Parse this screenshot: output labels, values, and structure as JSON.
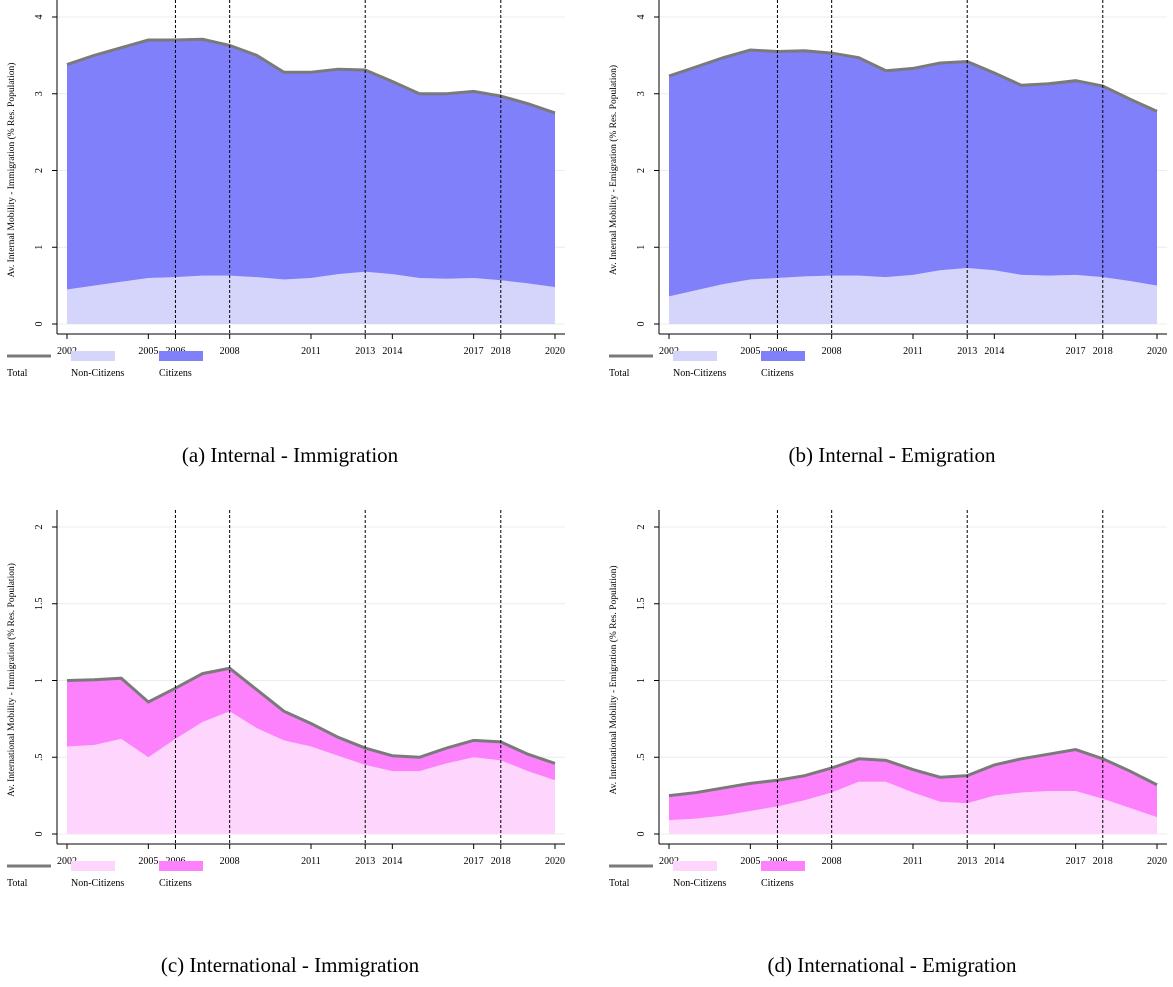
{
  "chart_data": [
    {
      "type": "stacked-area",
      "caption": "(a) Internal - Immigration",
      "y_label": "Av. Internal Mobility - Immigration (% Res. Population)",
      "x": [
        2002,
        2003,
        2004,
        2005,
        2006,
        2007,
        2008,
        2009,
        2010,
        2011,
        2012,
        2013,
        2014,
        2015,
        2016,
        2017,
        2018,
        2019,
        2020
      ],
      "series": [
        {
          "name": "Total",
          "color": "#7a7a7a",
          "style": "line",
          "values": [
            3.38,
            3.5,
            3.6,
            3.7,
            3.7,
            3.71,
            3.63,
            3.5,
            3.28,
            3.28,
            3.32,
            3.31,
            3.16,
            3.0,
            3.0,
            3.03,
            2.97,
            2.87,
            2.75
          ]
        },
        {
          "name": "Non-Citizens",
          "color": "#d5d5fb",
          "style": "area",
          "values": [
            0.45,
            0.5,
            0.55,
            0.6,
            0.61,
            0.63,
            0.63,
            0.61,
            0.58,
            0.6,
            0.65,
            0.68,
            0.65,
            0.6,
            0.59,
            0.6,
            0.57,
            0.53,
            0.48
          ]
        },
        {
          "name": "Citizens",
          "color": "#8080fa",
          "style": "area",
          "values": [
            2.93,
            3.0,
            3.05,
            3.1,
            3.09,
            3.08,
            3.0,
            2.89,
            2.7,
            2.68,
            2.67,
            2.63,
            2.51,
            2.4,
            2.41,
            2.43,
            2.4,
            2.34,
            2.27
          ]
        }
      ],
      "xlim": [
        2002,
        2020
      ],
      "xticks": [
        2002,
        2005,
        2006,
        2008,
        2011,
        2013,
        2014,
        2017,
        2018,
        2020
      ],
      "ylim": [
        0,
        4
      ],
      "yticks": [
        0,
        1,
        2,
        3,
        4
      ],
      "vlines": [
        2006,
        2008,
        2013,
        2018
      ],
      "grid": true
    },
    {
      "type": "stacked-area",
      "caption": "(b) Internal - Emigration",
      "y_label": "Av. Internal Mobility - Emigration (% Res. Population)",
      "x": [
        2002,
        2003,
        2004,
        2005,
        2006,
        2007,
        2008,
        2009,
        2010,
        2011,
        2012,
        2013,
        2014,
        2015,
        2016,
        2017,
        2018,
        2019,
        2020
      ],
      "series": [
        {
          "name": "Total",
          "color": "#7a7a7a",
          "style": "line",
          "values": [
            3.23,
            3.35,
            3.47,
            3.57,
            3.55,
            3.56,
            3.53,
            3.47,
            3.3,
            3.33,
            3.4,
            3.42,
            3.27,
            3.11,
            3.13,
            3.17,
            3.1,
            2.93,
            2.77
          ]
        },
        {
          "name": "Non-Citizens",
          "color": "#d5d5fb",
          "style": "area",
          "values": [
            0.36,
            0.44,
            0.52,
            0.58,
            0.6,
            0.62,
            0.63,
            0.63,
            0.61,
            0.64,
            0.7,
            0.73,
            0.7,
            0.64,
            0.63,
            0.64,
            0.61,
            0.56,
            0.5
          ]
        },
        {
          "name": "Citizens",
          "color": "#8080fa",
          "style": "area",
          "values": [
            2.87,
            2.91,
            2.95,
            2.99,
            2.95,
            2.94,
            2.9,
            2.84,
            2.69,
            2.69,
            2.7,
            2.69,
            2.57,
            2.47,
            2.5,
            2.53,
            2.49,
            2.37,
            2.27
          ]
        }
      ],
      "xlim": [
        2002,
        2020
      ],
      "xticks": [
        2002,
        2005,
        2006,
        2008,
        2011,
        2013,
        2014,
        2017,
        2018,
        2020
      ],
      "ylim": [
        0,
        4
      ],
      "yticks": [
        0,
        1,
        2,
        3,
        4
      ],
      "vlines": [
        2006,
        2008,
        2013,
        2018
      ],
      "grid": true
    },
    {
      "type": "stacked-area",
      "caption": "(c) International - Immigration",
      "y_label": "Av. International Mobility - Immigration (% Res. Population)",
      "x": [
        2002,
        2003,
        2004,
        2005,
        2006,
        2007,
        2008,
        2009,
        2010,
        2011,
        2012,
        2013,
        2014,
        2015,
        2016,
        2017,
        2018,
        2019,
        2020
      ],
      "series": [
        {
          "name": "Total",
          "color": "#7a7a7a",
          "style": "line",
          "values": [
            1.0,
            1.005,
            1.015,
            0.86,
            0.95,
            1.045,
            1.08,
            0.94,
            0.8,
            0.72,
            0.63,
            0.56,
            0.51,
            0.5,
            0.56,
            0.61,
            0.6,
            0.52,
            0.46
          ]
        },
        {
          "name": "Non-Citizens",
          "color": "#fdd5fd",
          "style": "area",
          "values": [
            0.57,
            0.58,
            0.62,
            0.5,
            0.62,
            0.73,
            0.8,
            0.69,
            0.61,
            0.57,
            0.51,
            0.45,
            0.41,
            0.41,
            0.46,
            0.5,
            0.48,
            0.41,
            0.35
          ]
        },
        {
          "name": "Citizens",
          "color": "#fd80fd",
          "style": "area",
          "values": [
            0.43,
            0.425,
            0.395,
            0.36,
            0.33,
            0.315,
            0.28,
            0.25,
            0.19,
            0.15,
            0.12,
            0.11,
            0.1,
            0.09,
            0.1,
            0.11,
            0.12,
            0.11,
            0.11
          ]
        }
      ],
      "xlim": [
        2002,
        2020
      ],
      "xticks": [
        2002,
        2005,
        2006,
        2008,
        2011,
        2013,
        2014,
        2017,
        2018,
        2020
      ],
      "ylim": [
        0,
        2
      ],
      "yticks": [
        0,
        {
          "value": 0.5,
          "label": ".5"
        },
        1,
        1.5,
        2
      ],
      "vlines": [
        2006,
        2008,
        2013,
        2018
      ],
      "grid": true
    },
    {
      "type": "stacked-area",
      "caption": "(d) International - Emigration",
      "y_label": "Av. International Mobility - Emigration (% Res. Population)",
      "x": [
        2002,
        2003,
        2004,
        2005,
        2006,
        2007,
        2008,
        2009,
        2010,
        2011,
        2012,
        2013,
        2014,
        2015,
        2016,
        2017,
        2018,
        2019,
        2020
      ],
      "series": [
        {
          "name": "Total",
          "color": "#7a7a7a",
          "style": "line",
          "values": [
            0.25,
            0.27,
            0.3,
            0.33,
            0.35,
            0.38,
            0.43,
            0.49,
            0.48,
            0.42,
            0.37,
            0.38,
            0.45,
            0.49,
            0.52,
            0.55,
            0.49,
            0.41,
            0.32
          ]
        },
        {
          "name": "Non-Citizens",
          "color": "#fdd5fd",
          "style": "area",
          "values": [
            0.09,
            0.1,
            0.12,
            0.15,
            0.18,
            0.22,
            0.27,
            0.34,
            0.34,
            0.27,
            0.21,
            0.2,
            0.25,
            0.27,
            0.28,
            0.28,
            0.23,
            0.17,
            0.11
          ]
        },
        {
          "name": "Citizens",
          "color": "#fd80fd",
          "style": "area",
          "values": [
            0.16,
            0.17,
            0.18,
            0.18,
            0.17,
            0.16,
            0.16,
            0.15,
            0.14,
            0.15,
            0.16,
            0.18,
            0.2,
            0.22,
            0.24,
            0.27,
            0.26,
            0.24,
            0.21
          ]
        }
      ],
      "xlim": [
        2002,
        2020
      ],
      "xticks": [
        2002,
        2005,
        2006,
        2008,
        2011,
        2013,
        2014,
        2017,
        2018,
        2020
      ],
      "ylim": [
        0,
        2
      ],
      "yticks": [
        0,
        {
          "value": 0.5,
          "label": ".5"
        },
        1,
        1.5,
        2
      ],
      "vlines": [
        2006,
        2008,
        2013,
        2018
      ],
      "grid": true
    }
  ]
}
